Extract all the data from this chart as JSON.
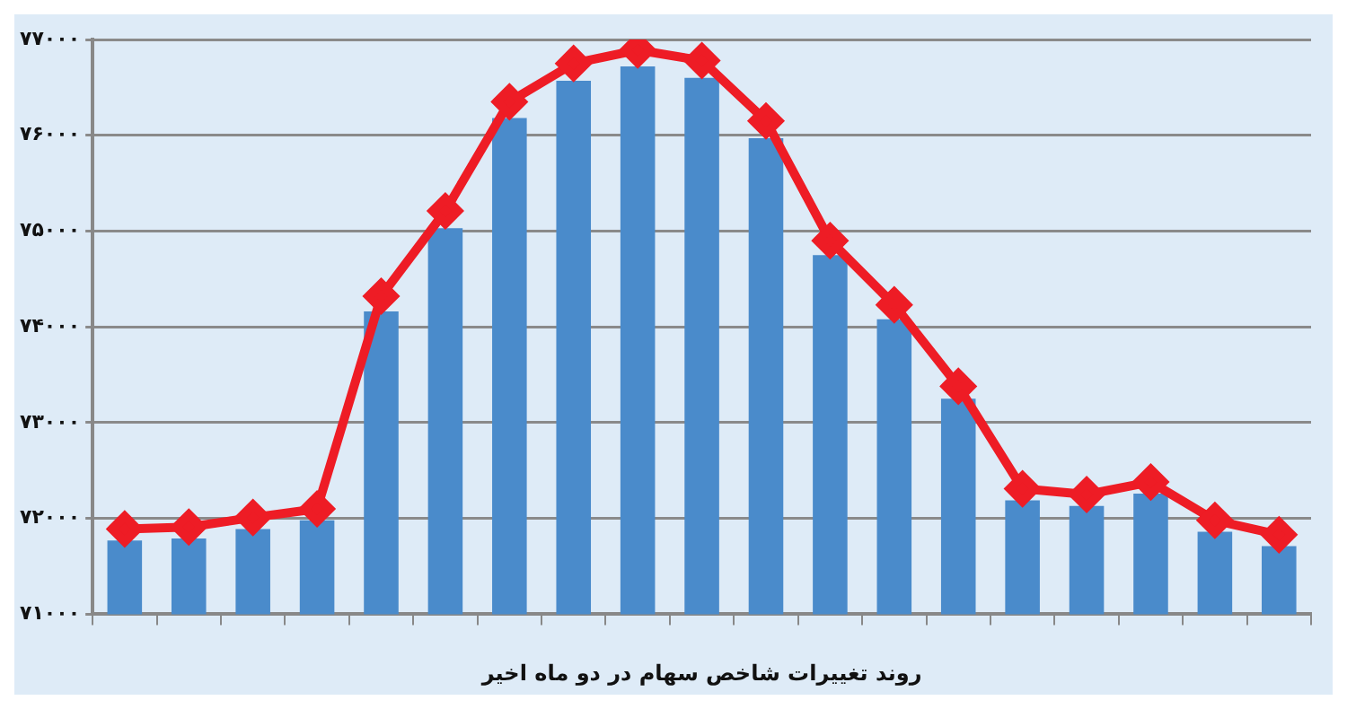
{
  "chart_data": {
    "type": "bar",
    "xlabel": "روند تغییرات شاخص سهام در دو ماه اخیر",
    "categories": [
      null,
      null,
      null,
      null,
      null,
      null,
      null,
      null,
      null,
      null,
      null,
      null,
      null,
      null,
      null,
      null,
      null,
      null,
      null
    ],
    "series": [
      {
        "color": "#4a8bcb",
        "values": [
          71770,
          71790,
          71890,
          71980,
          74160,
          75030,
          76180,
          76570,
          76720,
          76600,
          75970,
          74750,
          74080,
          73250,
          72190,
          72130,
          72260,
          71860,
          71710
        ]
      },
      {
        "type": "line",
        "color": "#ee1c25",
        "marker": "diamond",
        "line_style": "solid",
        "values": [
          71890,
          71910,
          72010,
          72100,
          74320,
          75210,
          76350,
          76750,
          76890,
          76780,
          76150,
          74900,
          74230,
          73380,
          72310,
          72250,
          72380,
          71980,
          71830
        ]
      }
    ],
    "ylim": [
      71000,
      77000
    ],
    "yticks": [
      {
        "value": 71000,
        "label": "۷۱۰۰۰"
      },
      {
        "value": 72000,
        "label": "۷۲۰۰۰"
      },
      {
        "value": 73000,
        "label": "۷۳۰۰۰"
      },
      {
        "value": 74000,
        "label": "۷۴۰۰۰"
      },
      {
        "value": 75000,
        "label": "۷۵۰۰۰"
      },
      {
        "value": 76000,
        "label": "۷۶۰۰۰"
      },
      {
        "value": 77000,
        "label": "۷۷۰۰۰"
      }
    ],
    "grid": "y",
    "legend": false
  }
}
